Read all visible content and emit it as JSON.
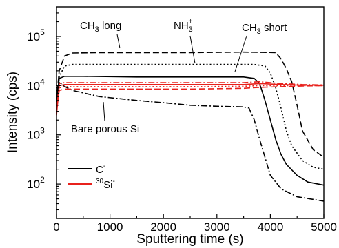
{
  "chart_data": {
    "type": "line",
    "title": "",
    "xlabel": "Sputtering time (s)",
    "ylabel": "Intensity (cps)",
    "xlim": [
      0,
      5000
    ],
    "ylim": [
      20,
      400000
    ],
    "yscale": "log",
    "grid": false,
    "legend_position": "bottom-left",
    "x_ticks": [
      0,
      1000,
      2000,
      3000,
      4000,
      5000
    ],
    "y_ticks": [
      {
        "value": 100,
        "mantissa": "10",
        "exp": "2"
      },
      {
        "value": 1000,
        "mantissa": "10",
        "exp": "3"
      },
      {
        "value": 10000,
        "mantissa": "10",
        "exp": "4"
      },
      {
        "value": 100000,
        "mantissa": "10",
        "exp": "5"
      }
    ],
    "legend": [
      {
        "species": "C",
        "sup_pre": "",
        "sup_post": "-",
        "color": "#000000"
      },
      {
        "species": "Si",
        "sup_pre": "30",
        "sup_post": "-",
        "color": "#e8211c"
      }
    ],
    "annotations": [
      {
        "base": "CH",
        "sub": "3",
        "rest": " long"
      },
      {
        "base": "NH",
        "sub": "3",
        "sup": "+",
        "rest": ""
      },
      {
        "base": "CH",
        "sub": "3",
        "rest": " short"
      },
      {
        "base": "Bare porous Si",
        "sub": "",
        "rest": ""
      }
    ],
    "series": [
      {
        "ion": "C-",
        "sample": "CH3 long",
        "color": "#000000",
        "dash": "dashed",
        "x": [
          0,
          50,
          150,
          300,
          800,
          1500,
          2500,
          3500,
          4100,
          4200,
          4300,
          4400,
          4500,
          4600,
          4800,
          5000
        ],
        "y": [
          5000,
          20000,
          40000,
          46000,
          47000,
          47000,
          47000,
          48000,
          47000,
          35000,
          22000,
          12000,
          4000,
          1200,
          500,
          350
        ]
      },
      {
        "ion": "C-",
        "sample": "NH3+",
        "color": "#000000",
        "dash": "dotted",
        "x": [
          0,
          50,
          150,
          300,
          1000,
          2000,
          3000,
          3700,
          3900,
          4000,
          4100,
          4200,
          4300,
          4400,
          4600,
          4800,
          5000
        ],
        "y": [
          4000,
          15000,
          25000,
          27000,
          27000,
          27000,
          27000,
          27000,
          25000,
          18000,
          9000,
          3500,
          1200,
          600,
          300,
          220,
          200
        ]
      },
      {
        "ion": "C-",
        "sample": "CH3 short",
        "color": "#000000",
        "dash": "solid",
        "x": [
          0,
          50,
          150,
          500,
          1500,
          2500,
          3500,
          3700,
          3800,
          3900,
          4000,
          4100,
          4200,
          4300,
          4500,
          4700,
          5000
        ],
        "y": [
          5000,
          14000,
          15500,
          15500,
          15000,
          15000,
          15000,
          14000,
          11000,
          5000,
          2000,
          800,
          400,
          250,
          150,
          110,
          95
        ]
      },
      {
        "ion": "C-",
        "sample": "Bare porous Si",
        "color": "#000000",
        "dash": "dashdot",
        "x": [
          0,
          50,
          120,
          300,
          800,
          1500,
          2000,
          2500,
          3000,
          3500,
          3600,
          3700,
          3800,
          3900,
          4000,
          4200,
          4500,
          5000
        ],
        "y": [
          3000,
          12000,
          10000,
          8000,
          6000,
          5000,
          4500,
          4000,
          3800,
          3700,
          3500,
          2000,
          800,
          350,
          150,
          80,
          55,
          45
        ]
      },
      {
        "ion": "30Si-",
        "sample": "CH3 long",
        "color": "#e8211c",
        "dash": "dashed",
        "x": [
          0,
          50,
          150,
          500,
          1500,
          2500,
          3500,
          3800,
          4200,
          4600,
          5000
        ],
        "y": [
          3000,
          8000,
          8500,
          8500,
          8500,
          8500,
          8800,
          9200,
          9500,
          9800,
          10000
        ]
      },
      {
        "ion": "30Si-",
        "sample": "NH3+",
        "color": "#e8211c",
        "dash": "dotted",
        "x": [
          0,
          50,
          150,
          500,
          1500,
          2500,
          3500,
          3800,
          4200,
          4600,
          5000
        ],
        "y": [
          3000,
          9000,
          9500,
          9500,
          9500,
          9500,
          9700,
          10000,
          10000,
          10000,
          10000
        ]
      },
      {
        "ion": "30Si-",
        "sample": "CH3 short",
        "color": "#e8211c",
        "dash": "solid",
        "x": [
          0,
          50,
          150,
          500,
          1500,
          2500,
          3500,
          3800,
          4200,
          4600,
          5000
        ],
        "y": [
          2500,
          10000,
          10500,
          10500,
          10500,
          10500,
          10500,
          11000,
          10500,
          10200,
          10200
        ]
      },
      {
        "ion": "30Si-",
        "sample": "Bare porous Si",
        "color": "#e8211c",
        "dash": "dashdot",
        "x": [
          0,
          50,
          150,
          500,
          1500,
          2500,
          3500,
          3800,
          4200,
          4600,
          5000
        ],
        "y": [
          3000,
          11000,
          11500,
          11500,
          11500,
          11500,
          11500,
          12000,
          11000,
          10500,
          10300
        ]
      }
    ]
  }
}
